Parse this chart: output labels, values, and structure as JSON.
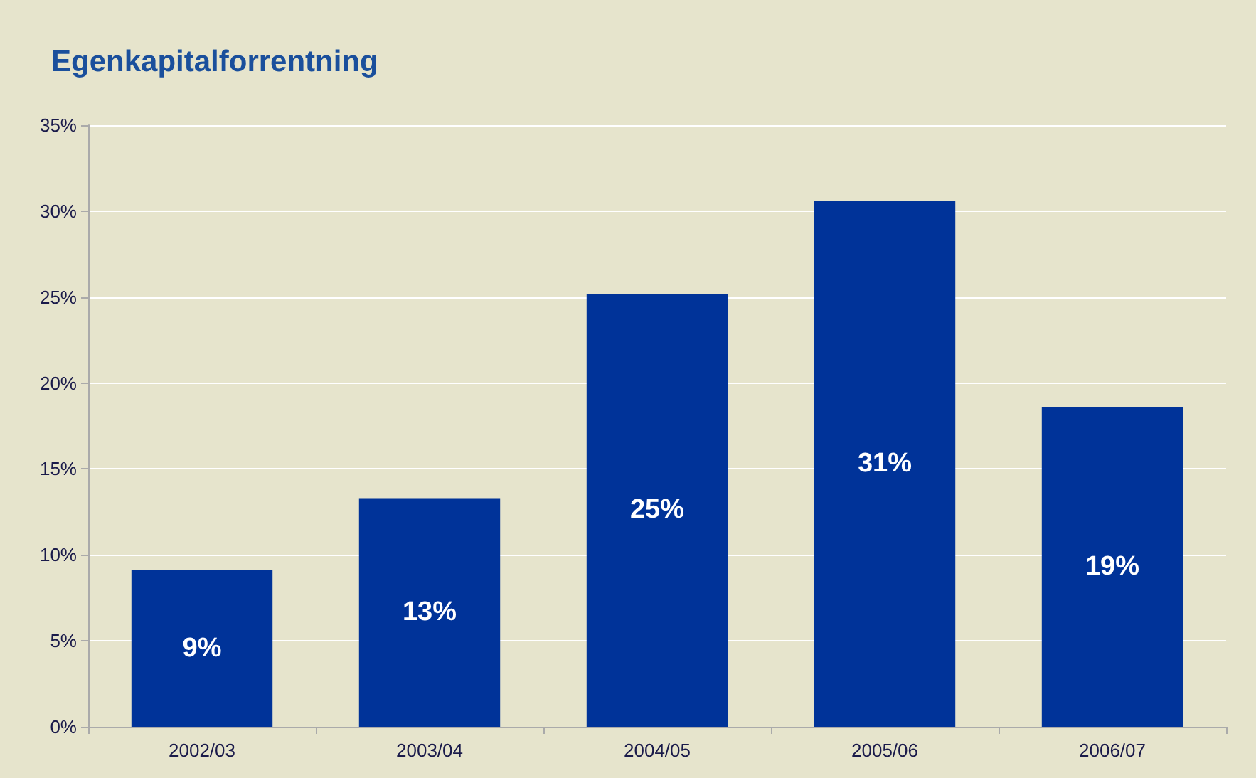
{
  "chart_data": {
    "type": "bar",
    "title": "Egenkapitalforrentning",
    "categories": [
      "2002/03",
      "2003/04",
      "2004/05",
      "2005/06",
      "2006/07"
    ],
    "values": [
      9.1,
      13.3,
      25.2,
      30.6,
      18.6
    ],
    "value_labels": [
      "9%",
      "13%",
      "25%",
      "31%",
      "19%"
    ],
    "color": "#003399",
    "ylim": [
      0,
      35
    ],
    "yticks": [
      {
        "value": 0,
        "label": "0%"
      },
      {
        "value": 5,
        "label": "5%"
      },
      {
        "value": 10,
        "label": "10%"
      },
      {
        "value": 15,
        "label": "15%"
      },
      {
        "value": 20,
        "label": "20%"
      },
      {
        "value": 25,
        "label": "25%"
      },
      {
        "value": 30,
        "label": "30%"
      },
      {
        "value": 35,
        "label": "35%"
      }
    ],
    "grid": "y"
  }
}
